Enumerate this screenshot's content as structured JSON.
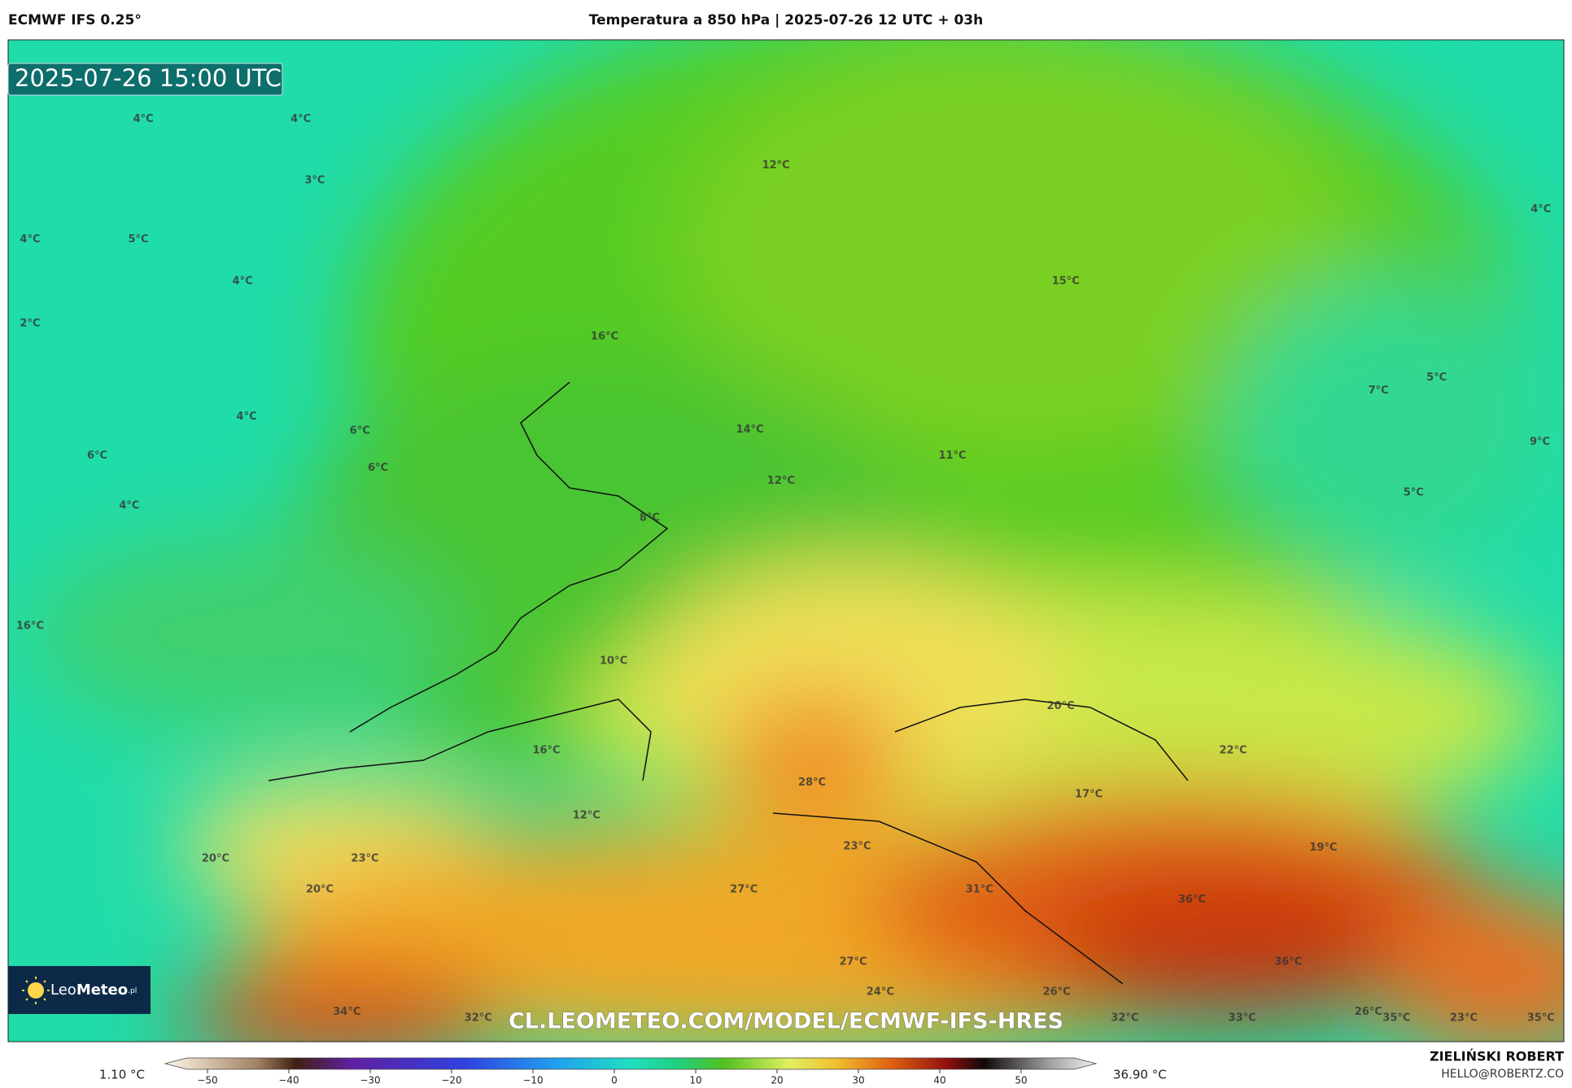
{
  "header": {
    "model": "ECMWF IFS 0.25°",
    "title": "Temperatura a 850 hPa | 2025-07-26 12 UTC + 03h"
  },
  "timestamp": "2025-07-26 15:00 UTC",
  "labels": [
    "4°C",
    "4°C",
    "3°C",
    "12°C",
    "4°C",
    "4°C",
    "5°C",
    "4°C",
    "15°C",
    "2°C",
    "16°C",
    "7°C",
    "5°C",
    "4°C",
    "6°C",
    "14°C",
    "9°C",
    "6°C",
    "6°C",
    "11°C",
    "12°C",
    "5°C",
    "4°C",
    "8°C",
    "16°C",
    "10°C",
    "20°C",
    "16°C",
    "22°C",
    "28°C",
    "17°C",
    "12°C",
    "19°C",
    "20°C",
    "23°C",
    "23°C",
    "20°C",
    "27°C",
    "31°C",
    "36°C",
    "27°C",
    "36°C",
    "24°C",
    "26°C",
    "34°C",
    "32°C",
    "32°C",
    "33°C",
    "26°C",
    "35°C",
    "23°C",
    "35°C"
  ],
  "watermark": "CL.LEOMETEO.COM/MODEL/ECMWF-IFS-HRES",
  "logo": {
    "leo": "Leo",
    "meteo": "Meteo",
    "suffix": ".pl"
  },
  "colorbar": {
    "min_label": "1.10 °C",
    "max_label": "36.90 °C",
    "ticks": [
      {
        "value": -50,
        "label": "−50"
      },
      {
        "value": -40,
        "label": "−40"
      },
      {
        "value": -30,
        "label": "−30"
      },
      {
        "value": -20,
        "label": "−20"
      },
      {
        "value": -10,
        "label": "−10"
      },
      0,
      10,
      20,
      30,
      40,
      50
    ]
  },
  "author": {
    "name": "ZIELIŃSKI ROBERT",
    "email": "HELLO@ROBERTZ.CO"
  }
}
